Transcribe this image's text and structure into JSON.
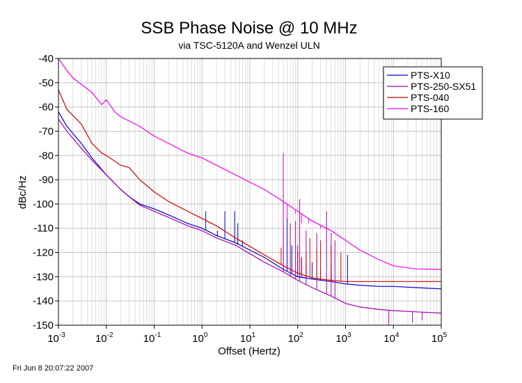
{
  "chart_data": {
    "type": "line",
    "title": "SSB Phase Noise @ 10 MHz",
    "subtitle": "via TSC-5120A and Wenzel ULN",
    "xlabel": "Offset (Hertz)",
    "ylabel": "dBc/Hz",
    "x_scale": "log",
    "xlim": [
      0.001,
      100000
    ],
    "ylim": [
      -150,
      -40
    ],
    "grid": true,
    "legend_position": "top-right",
    "x_ticks": [
      {
        "base": "10",
        "exp": "-3",
        "value": 0.001
      },
      {
        "base": "10",
        "exp": "-2",
        "value": 0.01
      },
      {
        "base": "10",
        "exp": "-1",
        "value": 0.1
      },
      {
        "base": "10",
        "exp": "0",
        "value": 1
      },
      {
        "base": "10",
        "exp": "1",
        "value": 10
      },
      {
        "base": "10",
        "exp": "2",
        "value": 100
      },
      {
        "base": "10",
        "exp": "3",
        "value": 1000
      },
      {
        "base": "10",
        "exp": "4",
        "value": 10000
      },
      {
        "base": "10",
        "exp": "5",
        "value": 100000
      }
    ],
    "y_ticks": [
      "-40",
      "-50",
      "-60",
      "-70",
      "-80",
      "-90",
      "-100",
      "-110",
      "-120",
      "-130",
      "-140",
      "-150"
    ],
    "series": [
      {
        "name": "PTS-X10",
        "color": "#0000cc",
        "x": [
          0.001,
          0.0015,
          0.003,
          0.005,
          0.01,
          0.02,
          0.03,
          0.05,
          0.1,
          0.2,
          0.5,
          1,
          2,
          5,
          10,
          20,
          50,
          100,
          200,
          500,
          1000,
          2000,
          5000,
          10000,
          30000,
          100000
        ],
        "y": [
          -62,
          -68,
          -75,
          -81,
          -88,
          -94,
          -97,
          -100,
          -102,
          -104.5,
          -108,
          -110,
          -113,
          -116,
          -119,
          -122,
          -127,
          -130,
          -131,
          -132,
          -133,
          -133.5,
          -134,
          -134,
          -134.5,
          -135
        ],
        "spurs": [
          {
            "x": 1.2,
            "y": -103
          },
          {
            "x": 1.6,
            "y": -112
          },
          {
            "x": 2.1,
            "y": -111
          },
          {
            "x": 3.0,
            "y": -103
          },
          {
            "x": 4.8,
            "y": -103
          },
          {
            "x": 5.6,
            "y": -108
          },
          {
            "x": 7.0,
            "y": -115
          },
          {
            "x": 50,
            "y": -110
          },
          {
            "x": 60,
            "y": -103
          },
          {
            "x": 75,
            "y": -117
          },
          {
            "x": 100,
            "y": -120
          },
          {
            "x": 120,
            "y": -122
          },
          {
            "x": 150,
            "y": -125
          },
          {
            "x": 200,
            "y": -124
          },
          {
            "x": 300,
            "y": -127
          },
          {
            "x": 500,
            "y": -125
          },
          {
            "x": 1100,
            "y": -121
          }
        ]
      },
      {
        "name": "PTS-250-SX51",
        "color": "#aa00aa",
        "x": [
          0.001,
          0.0015,
          0.003,
          0.005,
          0.01,
          0.02,
          0.03,
          0.05,
          0.1,
          0.2,
          0.5,
          1,
          2,
          5,
          10,
          20,
          50,
          100,
          200,
          500,
          1000,
          2000,
          5000,
          10000,
          30000,
          100000
        ],
        "y": [
          -65,
          -70,
          -77,
          -82,
          -88,
          -94,
          -97,
          -100.5,
          -103,
          -105.5,
          -109,
          -111,
          -114,
          -117,
          -120.5,
          -124,
          -128,
          -131.5,
          -134.5,
          -138,
          -141,
          -142.5,
          -143.5,
          -144,
          -144.5,
          -145
        ],
        "spurs": [
          {
            "x": 50,
            "y": -79
          },
          {
            "x": 70,
            "y": -108
          },
          {
            "x": 90,
            "y": -107
          },
          {
            "x": 110,
            "y": -98
          },
          {
            "x": 150,
            "y": -111
          },
          {
            "x": 250,
            "y": -112
          },
          {
            "x": 400,
            "y": -103
          },
          {
            "x": 500,
            "y": -112
          },
          {
            "x": 600,
            "y": -115
          },
          {
            "x": 8000,
            "y": -150
          },
          {
            "x": 25000,
            "y": -149
          },
          {
            "x": 40000,
            "y": -148
          }
        ]
      },
      {
        "name": "PTS-040",
        "color": "#cc0000",
        "x": [
          0.001,
          0.0015,
          0.003,
          0.005,
          0.008,
          0.01,
          0.02,
          0.03,
          0.05,
          0.1,
          0.2,
          0.5,
          1,
          2,
          5,
          10,
          20,
          50,
          100,
          200,
          500,
          1000,
          2000,
          5000,
          10000,
          30000,
          100000
        ],
        "y": [
          -53,
          -61,
          -67,
          -75,
          -79,
          -80,
          -84,
          -85,
          -90,
          -95,
          -99,
          -103,
          -106,
          -109,
          -114,
          -117.5,
          -121,
          -125.5,
          -128.5,
          -130.5,
          -131.5,
          -132,
          -132,
          -132,
          -132,
          -132,
          -132
        ],
        "spurs": [
          {
            "x": 45,
            "y": -118
          },
          {
            "x": 100,
            "y": -117
          },
          {
            "x": 120,
            "y": -122
          },
          {
            "x": 150,
            "y": -120
          },
          {
            "x": 180,
            "y": -114
          },
          {
            "x": 250,
            "y": -118
          },
          {
            "x": 300,
            "y": -115
          },
          {
            "x": 500,
            "y": -117
          },
          {
            "x": 800,
            "y": -120
          }
        ]
      },
      {
        "name": "PTS-160",
        "color": "#ee00ee",
        "x": [
          0.001,
          0.0015,
          0.002,
          0.005,
          0.008,
          0.01,
          0.015,
          0.02,
          0.05,
          0.1,
          0.2,
          0.5,
          1,
          2,
          5,
          10,
          20,
          50,
          100,
          200,
          500,
          1000,
          2000,
          5000,
          10000,
          30000,
          100000
        ],
        "y": [
          -40,
          -45,
          -48,
          -54,
          -59,
          -57,
          -62,
          -64,
          -68,
          -72,
          -75,
          -79,
          -81,
          -84,
          -88,
          -91,
          -94,
          -99,
          -103,
          -107,
          -111,
          -115,
          -119,
          -123,
          -125.5,
          -126.8,
          -127
        ],
        "spurs": [
          {
            "x": 60,
            "y": -106
          },
          {
            "x": 90,
            "y": -104
          },
          {
            "x": 120,
            "y": -108
          },
          {
            "x": 170,
            "y": -108
          },
          {
            "x": 240,
            "y": -108
          },
          {
            "x": 300,
            "y": -110
          }
        ]
      }
    ]
  },
  "footer": "Fri Jun  8 20:07:22 2007"
}
